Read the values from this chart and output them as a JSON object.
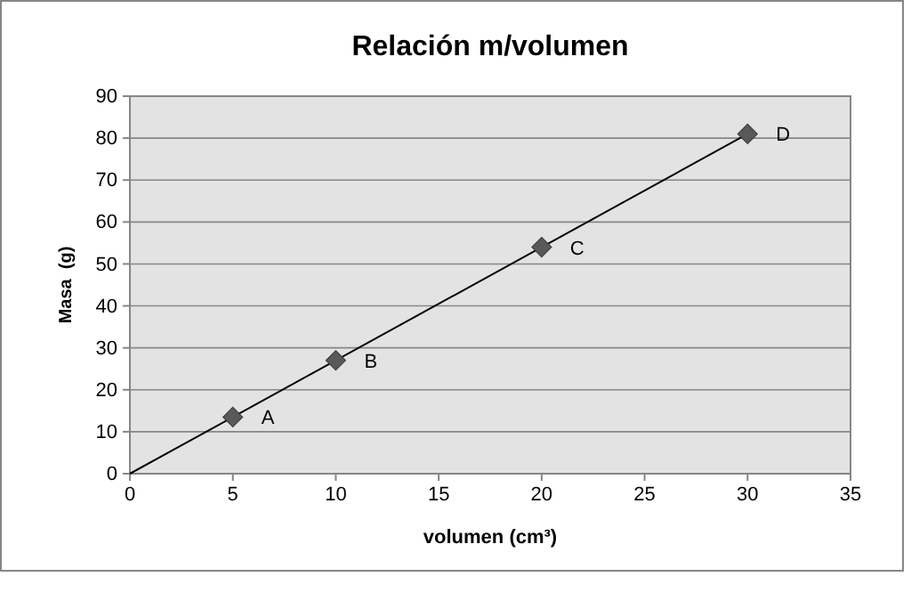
{
  "chart_data": {
    "type": "scatter",
    "title": "Relación m/volumen",
    "xlabel": "volumen (cm³)",
    "ylabel": "Masa  (g)",
    "xlim": [
      0,
      35
    ],
    "xticks": [
      0,
      5,
      10,
      15,
      20,
      25,
      30,
      35
    ],
    "ylim": [
      0,
      90
    ],
    "yticks": [
      0,
      10,
      20,
      30,
      40,
      50,
      60,
      70,
      80,
      90
    ],
    "grid": "y",
    "series": [
      {
        "type": "line",
        "x": [
          0,
          30
        ],
        "values": [
          0,
          81
        ],
        "color": "#000000"
      },
      {
        "x": [
          5,
          10,
          20,
          30
        ],
        "values": [
          13.5,
          27,
          54,
          81
        ],
        "color": "#595959",
        "marker": "diamond"
      }
    ],
    "annotations": [
      {
        "text": "A",
        "x": 5,
        "y": 13.5
      },
      {
        "text": "B",
        "x": 10,
        "y": 27
      },
      {
        "text": "C",
        "x": 20,
        "y": 54
      },
      {
        "text": "D",
        "x": 30,
        "y": 81
      }
    ]
  }
}
